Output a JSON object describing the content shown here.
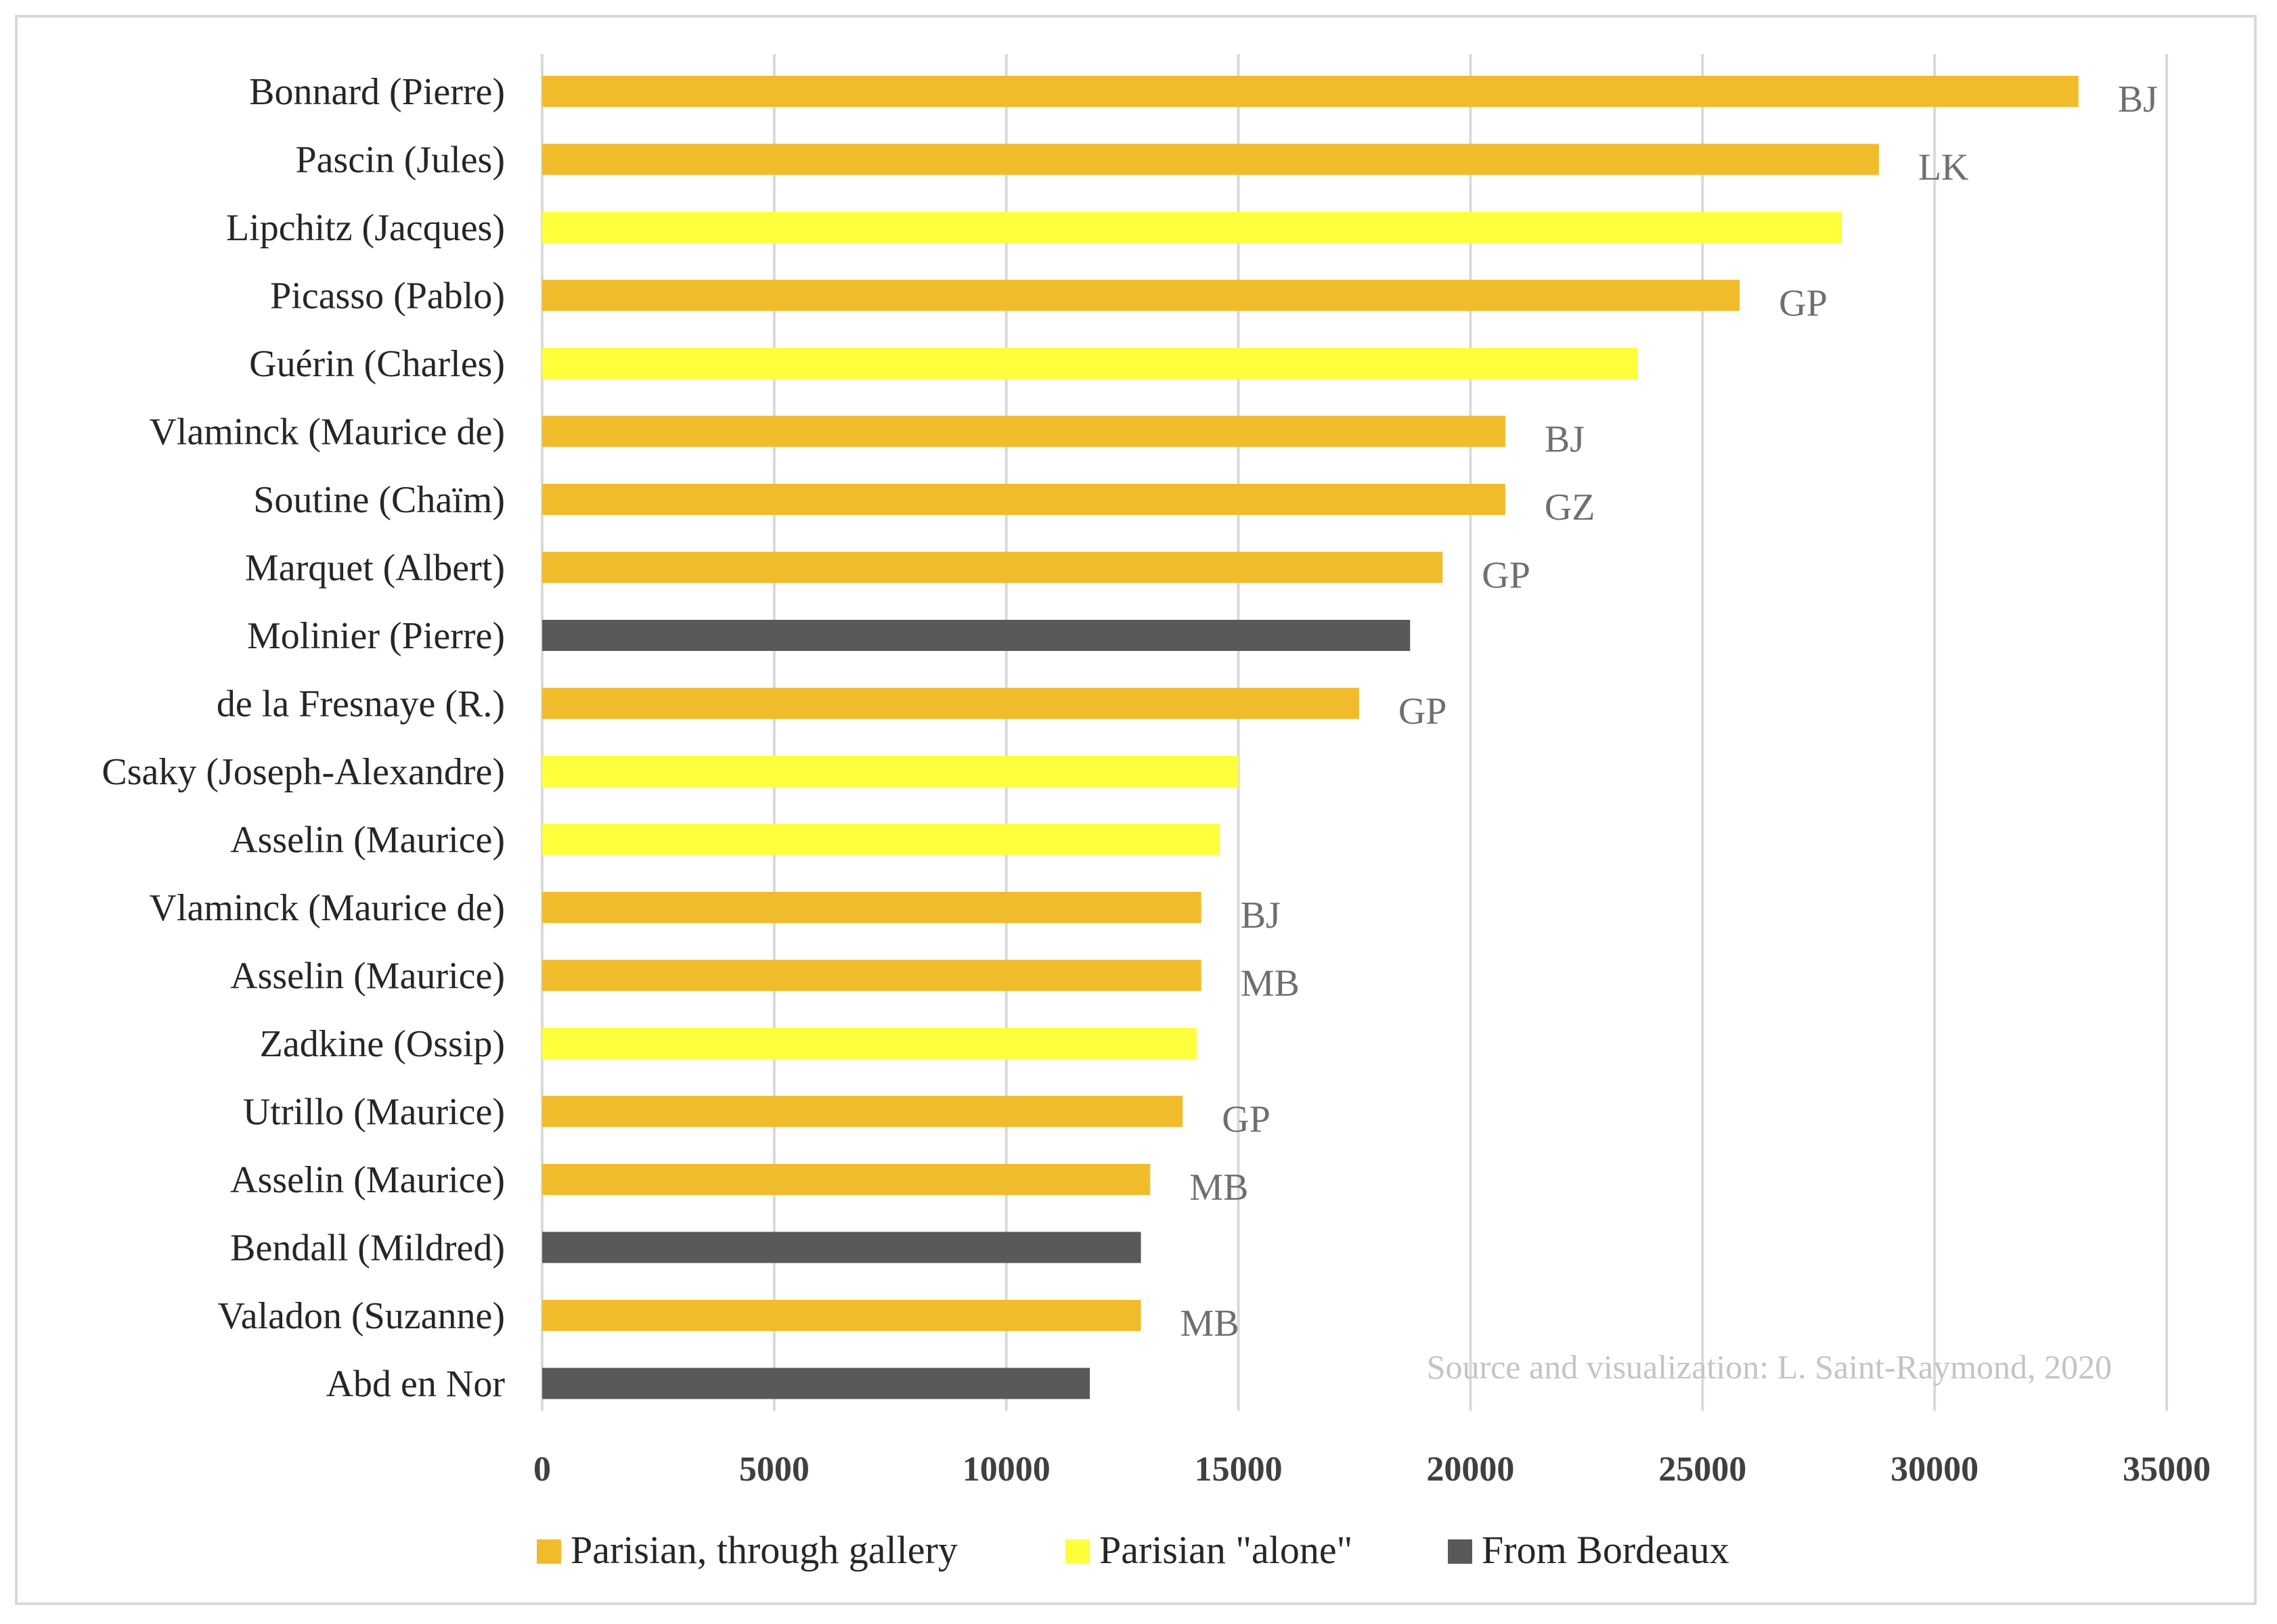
{
  "chart_data": {
    "type": "bar",
    "orientation": "horizontal",
    "title": "",
    "xlabel": "",
    "ylabel": "",
    "xlim": [
      0,
      35000
    ],
    "xticks": [
      0,
      5000,
      10000,
      15000,
      20000,
      25000,
      30000,
      35000
    ],
    "grid": true,
    "legend_position": "bottom",
    "series": [
      {
        "name": "Parisian, through gallery",
        "color": "#f0bc2c"
      },
      {
        "name": "Parisian \"alone\"",
        "color": "#ffff3b"
      },
      {
        "name": "From Bordeaux",
        "color": "#595959"
      }
    ],
    "bars": [
      {
        "category": "Bonnard (Pierre)",
        "value": 33100,
        "series": 0,
        "label": "BJ"
      },
      {
        "category": "Pascin (Jules)",
        "value": 28800,
        "series": 0,
        "label": "LK"
      },
      {
        "category": "Lipchitz (Jacques)",
        "value": 28000,
        "series": 1,
        "label": ""
      },
      {
        "category": "Picasso (Pablo)",
        "value": 25800,
        "series": 0,
        "label": "GP"
      },
      {
        "category": "Guérin (Charles)",
        "value": 23600,
        "series": 1,
        "label": ""
      },
      {
        "category": "Vlaminck (Maurice de)",
        "value": 20750,
        "series": 0,
        "label": "BJ"
      },
      {
        "category": "Soutine (Chaïm)",
        "value": 20750,
        "series": 0,
        "label": "GZ"
      },
      {
        "category": "Marquet (Albert)",
        "value": 19400,
        "series": 0,
        "label": "GP"
      },
      {
        "category": "Molinier (Pierre)",
        "value": 18700,
        "series": 2,
        "label": ""
      },
      {
        "category": "de la Fresnaye (R.)",
        "value": 17600,
        "series": 0,
        "label": "GP"
      },
      {
        "category": "Csaky (Joseph-Alexandre)",
        "value": 15000,
        "series": 1,
        "label": ""
      },
      {
        "category": "Asselin (Maurice)",
        "value": 14600,
        "series": 1,
        "label": ""
      },
      {
        "category": "Vlaminck (Maurice de)",
        "value": 14200,
        "series": 0,
        "label": "BJ"
      },
      {
        "category": "Asselin (Maurice)",
        "value": 14200,
        "series": 0,
        "label": "MB"
      },
      {
        "category": "Zadkine (Ossip)",
        "value": 14100,
        "series": 1,
        "label": ""
      },
      {
        "category": "Utrillo (Maurice)",
        "value": 13800,
        "series": 0,
        "label": "GP"
      },
      {
        "category": "Asselin (Maurice)",
        "value": 13100,
        "series": 0,
        "label": "MB"
      },
      {
        "category": "Bendall (Mildred)",
        "value": 12900,
        "series": 2,
        "label": ""
      },
      {
        "category": "Valadon (Suzanne)",
        "value": 12900,
        "series": 0,
        "label": "MB"
      },
      {
        "category": "Abd en Nor",
        "value": 11800,
        "series": 2,
        "label": ""
      }
    ],
    "annotation": "Source and visualization: L. Saint-Raymond, 2020"
  }
}
